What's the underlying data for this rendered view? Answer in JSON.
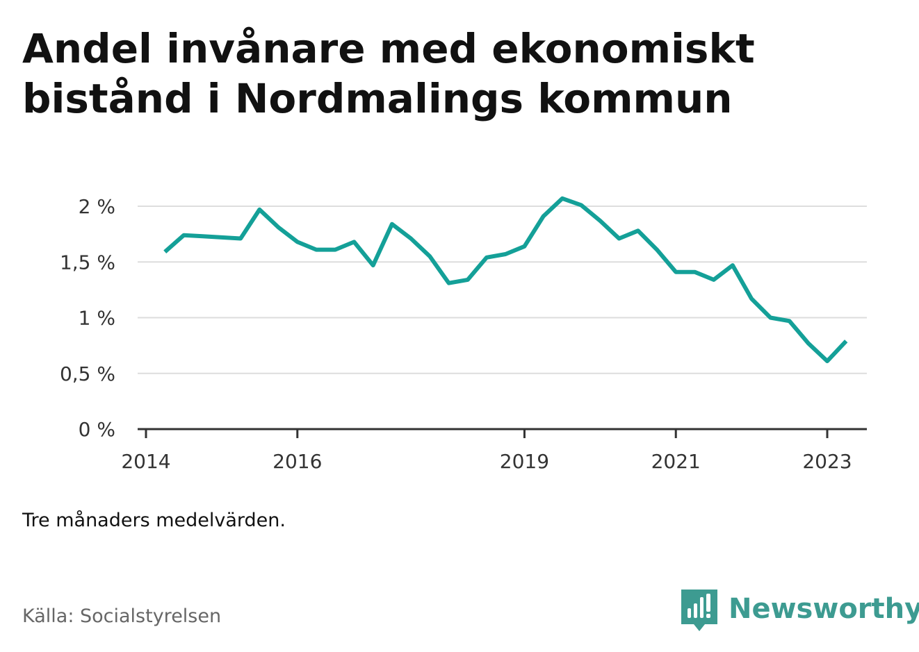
{
  "title": "Andel invånare med ekonomiskt bistånd i Nordmalings kommun",
  "note": "Tre månaders medelvärden.",
  "source": "Källa: Socialstyrelsen",
  "brand": {
    "name": "Newsworthy",
    "color": "#3d9b91",
    "icon": "bar-chart-speech-bubble-icon"
  },
  "colors": {
    "line": "#14a098",
    "grid": "#dddddd",
    "axis": "#333333"
  },
  "chart_data": {
    "type": "line",
    "title": "Andel invånare med ekonomiskt bistånd i Nordmalings kommun",
    "xlabel": "",
    "ylabel": "",
    "ylim": [
      0,
      2
    ],
    "yticks": [
      0,
      0.5,
      1,
      1.5,
      2
    ],
    "ytick_labels": [
      "0 %",
      "0,5 %",
      "1 %",
      "1,5 %",
      "2 %"
    ],
    "xlim": [
      "2014-01",
      "2023-05"
    ],
    "xticks": [
      "2014-01",
      "2016-01",
      "2019-01",
      "2021-01",
      "2023-01"
    ],
    "xtick_labels": [
      "2014",
      "2016",
      "2019",
      "2021",
      "2023"
    ],
    "grid": true,
    "legend": "none",
    "series": [
      {
        "x": [
          "2014-04",
          "2014-07",
          "2014-10",
          "2015-01",
          "2015-04",
          "2015-07",
          "2015-10",
          "2016-01",
          "2016-04",
          "2016-07",
          "2016-10",
          "2017-01",
          "2017-04",
          "2017-07",
          "2017-10",
          "2018-01",
          "2018-04",
          "2018-07",
          "2018-10",
          "2019-01",
          "2019-04",
          "2019-07",
          "2019-10",
          "2020-01",
          "2020-04",
          "2020-07",
          "2020-10",
          "2021-01",
          "2021-04",
          "2021-07",
          "2021-10",
          "2022-01",
          "2022-04",
          "2022-07",
          "2022-10",
          "2023-01",
          "2023-04"
        ],
        "values": [
          1.59,
          1.74,
          1.73,
          1.72,
          1.71,
          1.97,
          1.81,
          1.68,
          1.61,
          1.61,
          1.68,
          1.47,
          1.84,
          1.71,
          1.55,
          1.31,
          1.34,
          1.54,
          1.57,
          1.64,
          1.91,
          2.07,
          2.01,
          1.87,
          1.71,
          1.78,
          1.61,
          1.41,
          1.41,
          1.34,
          1.47,
          1.17,
          1.0,
          0.97,
          0.77,
          0.61,
          0.79
        ]
      }
    ]
  }
}
